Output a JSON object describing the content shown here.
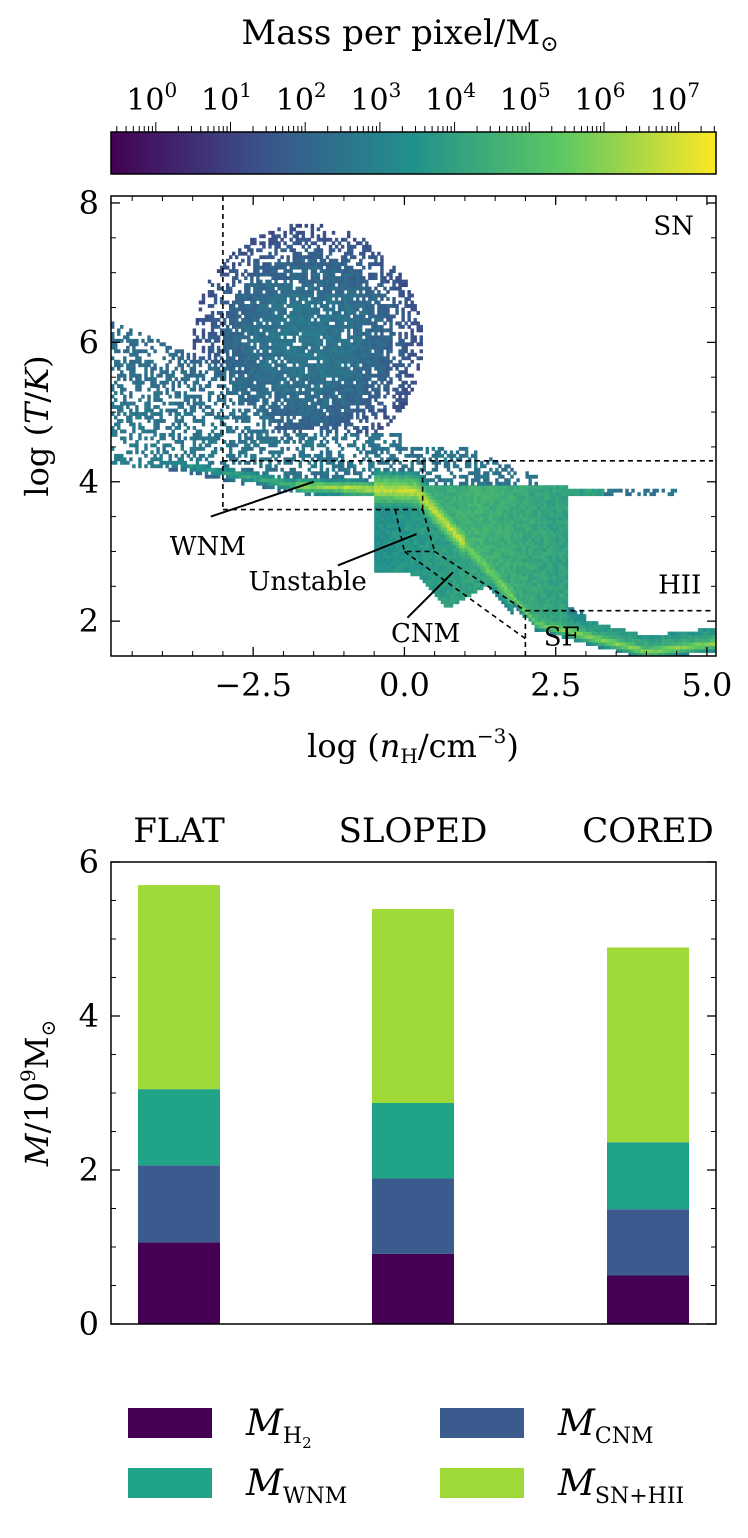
{
  "chart_data": [
    {
      "type": "heatmap",
      "title": "",
      "colorbar": {
        "label_text": "Mass per pixel/M",
        "label_symbol": "⊙",
        "scale": "log",
        "min_exp": -0.6,
        "max_exp": 7.5,
        "tick_exps": [
          0,
          1,
          2,
          3,
          4,
          5,
          6,
          7
        ],
        "tick_labels": [
          "10",
          "10",
          "10",
          "10",
          "10",
          "10",
          "10",
          "10"
        ],
        "tick_superscripts": [
          "0",
          "1",
          "2",
          "3",
          "4",
          "5",
          "6",
          "7"
        ],
        "colormap": [
          "#440154",
          "#3b528b",
          "#21918c",
          "#5ec962",
          "#fde725"
        ]
      },
      "xlabel": "log (n_H/cm^-3)",
      "xlabel_parts": {
        "prefix": "log (",
        "var": "n",
        "sub": "H",
        "unit": "/cm",
        "sup": "−3",
        "suffix": ")"
      },
      "ylabel": "log (T/K)",
      "xlim": [
        -4.85,
        5.15
      ],
      "ylim": [
        1.5,
        8.1
      ],
      "x_ticks": [
        -2.5,
        0.0,
        2.5,
        5.0
      ],
      "x_tick_labels": [
        "−2.5",
        "0.0",
        "2.5",
        "5.0"
      ],
      "y_ticks": [
        2,
        4,
        6,
        8
      ],
      "y_tick_labels": [
        "2",
        "4",
        "6",
        "8"
      ],
      "region_labels": [
        {
          "text": "SN",
          "x": 4.45,
          "y": 7.55
        },
        {
          "text": "HII",
          "x": 4.55,
          "y": 2.4
        },
        {
          "text": "SF",
          "x": 2.6,
          "y": 1.65
        },
        {
          "text": "WNM",
          "x": -3.25,
          "y": 2.95,
          "line_to": [
            -1.5,
            4.0
          ],
          "line_from": [
            -3.2,
            3.5
          ]
        },
        {
          "text": "Unstable",
          "x": -1.6,
          "y": 2.45,
          "line_to": [
            0.2,
            3.25
          ],
          "line_from": [
            -1.1,
            2.8
          ]
        },
        {
          "text": "CNM",
          "x": 0.35,
          "y": 1.7,
          "line_to": [
            0.8,
            2.7
          ],
          "line_from": [
            0.05,
            2.05
          ]
        }
      ],
      "region_boundaries": [
        [
          [
            -3.0,
            8.1
          ],
          [
            -3.0,
            3.6
          ]
        ],
        [
          [
            -3.0,
            4.3
          ],
          [
            5.1,
            4.3
          ]
        ],
        [
          [
            -3.0,
            3.6
          ],
          [
            0.3,
            3.6
          ]
        ],
        [
          [
            0.3,
            3.6
          ],
          [
            0.3,
            4.3
          ]
        ],
        [
          [
            -0.15,
            3.6
          ],
          [
            0.0,
            3.0
          ],
          [
            0.5,
            3.0
          ]
        ],
        [
          [
            0.3,
            3.6
          ],
          [
            0.5,
            3.0
          ]
        ],
        [
          [
            0.5,
            3.0
          ],
          [
            2.0,
            2.15
          ]
        ],
        [
          [
            2.0,
            2.15
          ],
          [
            5.1,
            2.15
          ]
        ],
        [
          [
            2.0,
            1.5
          ],
          [
            2.0,
            2.15
          ]
        ],
        [
          [
            0.0,
            3.0
          ],
          [
            2.0,
            1.75
          ]
        ]
      ]
    },
    {
      "type": "bar",
      "stacked": true,
      "categories": [
        "FLAT",
        "SLOPED",
        "CORED"
      ],
      "ylabel": "M/10^9 M_sun",
      "ylim": [
        0,
        6
      ],
      "y_ticks": [
        0,
        2,
        4,
        6
      ],
      "y_tick_labels": [
        "0",
        "2",
        "4",
        "6"
      ],
      "series": [
        {
          "name": "M_H2",
          "label_var": "M",
          "label_sub": "H",
          "label_subsub": "2",
          "color": "#440154",
          "values": [
            1.06,
            0.91,
            0.63
          ]
        },
        {
          "name": "M_CNM",
          "label_var": "M",
          "label_sub": "CNM",
          "label_subsub": "",
          "color": "#3b5b8f",
          "values": [
            1.0,
            0.98,
            0.86
          ]
        },
        {
          "name": "M_WNM",
          "label_var": "M",
          "label_sub": "WNM",
          "label_subsub": "",
          "color": "#20a386",
          "values": [
            0.99,
            0.98,
            0.87
          ]
        },
        {
          "name": "M_SN+HII",
          "label_var": "M",
          "label_sub": "SN+HII",
          "label_subsub": "",
          "color": "#a0da39",
          "values": [
            2.65,
            2.52,
            2.53
          ]
        }
      ]
    }
  ]
}
